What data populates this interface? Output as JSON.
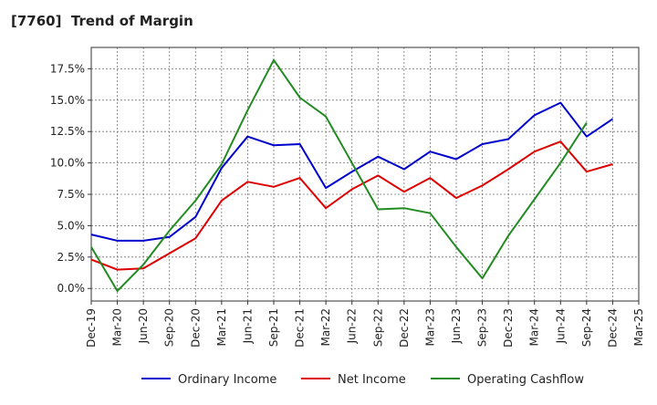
{
  "chart_data": {
    "type": "line",
    "title": "[7760]  Trend of Margin",
    "xlabel": "",
    "ylabel": "",
    "categories": [
      "Dec-19",
      "Mar-20",
      "Jun-20",
      "Sep-20",
      "Dec-20",
      "Mar-21",
      "Jun-21",
      "Sep-21",
      "Dec-21",
      "Mar-22",
      "Jun-22",
      "Sep-22",
      "Dec-22",
      "Mar-23",
      "Jun-23",
      "Sep-23",
      "Dec-23",
      "Mar-24",
      "Jun-24",
      "Sep-24",
      "Dec-24",
      "Mar-25"
    ],
    "y_ticks": [
      0.0,
      2.5,
      5.0,
      7.5,
      10.0,
      12.5,
      15.0,
      17.5
    ],
    "y_tick_labels": [
      "0.0%",
      "2.5%",
      "5.0%",
      "7.5%",
      "10.0%",
      "12.5%",
      "15.0%",
      "17.5%"
    ],
    "ylim": [
      -1.0,
      19.2
    ],
    "grid": true,
    "legend_position": "bottom",
    "series": [
      {
        "name": "Ordinary Income",
        "color": "#0000cc",
        "values": [
          4.3,
          3.8,
          3.8,
          4.1,
          5.7,
          9.6,
          12.1,
          11.4,
          11.5,
          8.0,
          9.3,
          10.5,
          9.5,
          10.9,
          10.3,
          11.5,
          11.9,
          13.8,
          14.8,
          12.1,
          13.5,
          null
        ]
      },
      {
        "name": "Net Income",
        "color": "#dd0000",
        "values": [
          2.3,
          1.5,
          1.6,
          2.8,
          4.0,
          7.0,
          8.5,
          8.1,
          8.8,
          6.4,
          7.9,
          9.0,
          7.7,
          8.8,
          7.2,
          8.2,
          9.5,
          10.9,
          11.7,
          9.3,
          9.9,
          null
        ]
      },
      {
        "name": "Operating Cashflow",
        "color": "#228B22",
        "values": [
          3.3,
          -0.2,
          1.9,
          4.6,
          7.0,
          9.9,
          14.2,
          18.2,
          15.2,
          13.7,
          10.0,
          6.3,
          6.4,
          6.0,
          3.3,
          0.8,
          4.2,
          7.1,
          10.0,
          13.2,
          null,
          null
        ]
      }
    ]
  }
}
